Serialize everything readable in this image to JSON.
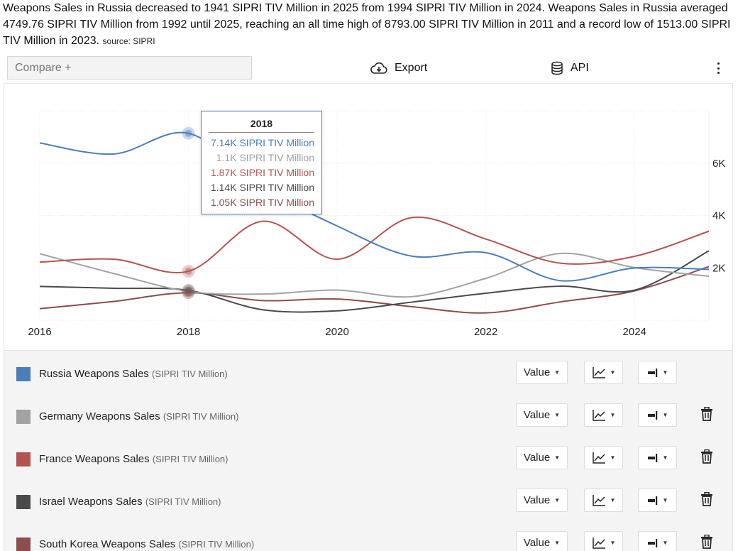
{
  "summary": {
    "text": "Weapons Sales in Russia decreased to 1941 SIPRI TIV Million in 2025 from 1994 SIPRI TIV Million in 2024. Weapons Sales in Russia averaged 4749.76 SIPRI TIV Million from 1992 until 2025, reaching an all time high of 8793.00 SIPRI TIV Million in 2011 and a record low of 1513.00 SIPRI TIV Million in 2023.",
    "source": "source: SIPRI"
  },
  "toolbar": {
    "compare_label": "Compare +",
    "export_label": "Export",
    "api_label": "API",
    "export_icon": "cloud-download-icon",
    "api_icon": "database-icon",
    "menu_icon": "kebab-menu-icon"
  },
  "chart_data": {
    "type": "line",
    "x_range": [
      2016,
      2025
    ],
    "y_range": [
      0,
      8000
    ],
    "x_ticks": [
      "2016",
      "2018",
      "2020",
      "2022",
      "2024"
    ],
    "y_ticks": [
      {
        "value": 2000,
        "label": "2K"
      },
      {
        "value": 4000,
        "label": "4K"
      },
      {
        "value": 6000,
        "label": "6K"
      }
    ],
    "grid": true,
    "y_axis_side": "right",
    "series": [
      {
        "key": "russia",
        "color": "#4a7ebb",
        "x": [
          2016,
          2017,
          2018,
          2019,
          2020,
          2021,
          2022,
          2023,
          2024,
          2025
        ],
        "values": [
          6770,
          6350,
          7140,
          5080,
          3600,
          2450,
          2580,
          1513,
          1994,
          1941
        ]
      },
      {
        "key": "germany",
        "color": "#a2a2a2",
        "x": [
          2016,
          2017,
          2018,
          2019,
          2020,
          2021,
          2022,
          2023,
          2024,
          2025
        ],
        "values": [
          2540,
          1780,
          1100,
          1000,
          1150,
          900,
          1600,
          2550,
          2010,
          1680
        ]
      },
      {
        "key": "france",
        "color": "#b35450",
        "x": [
          2016,
          2017,
          2018,
          2019,
          2020,
          2021,
          2022,
          2023,
          2024,
          2025
        ],
        "values": [
          2220,
          2330,
          1870,
          3780,
          2330,
          3920,
          3100,
          2180,
          2440,
          3400
        ]
      },
      {
        "key": "israel",
        "color": "#4a4a4a",
        "x": [
          2016,
          2017,
          2018,
          2019,
          2020,
          2021,
          2022,
          2023,
          2024,
          2025
        ],
        "values": [
          1290,
          1220,
          1140,
          400,
          360,
          690,
          1030,
          1300,
          1150,
          2650
        ]
      },
      {
        "key": "south_korea",
        "color": "#8b4d4d",
        "x": [
          2016,
          2017,
          2018,
          2019,
          2020,
          2021,
          2022,
          2023,
          2024,
          2025
        ],
        "values": [
          440,
          720,
          1050,
          750,
          810,
          520,
          280,
          700,
          1120,
          2050
        ]
      }
    ]
  },
  "tooltip": {
    "title": "2018",
    "rows": [
      {
        "text": "7.14K SIPRI TIV Million",
        "color": "#4a7ebb"
      },
      {
        "text": "1.1K SIPRI TIV Million",
        "color": "#a2a2a2"
      },
      {
        "text": "1.87K SIPRI TIV Million",
        "color": "#b35450"
      },
      {
        "text": "1.14K SIPRI TIV Million",
        "color": "#4a4a4a"
      },
      {
        "text": "1.05K SIPRI TIV Million",
        "color": "#8b4d4d"
      }
    ]
  },
  "legend": {
    "rows": [
      {
        "name": "Russia Weapons Sales",
        "unit": "(SIPRI TIV Million)",
        "color": "#4a7ebb",
        "value_label": "Value",
        "deletable": false
      },
      {
        "name": "Germany Weapons Sales",
        "unit": "(SIPRI TIV Million)",
        "color": "#a2a2a2",
        "value_label": "Value",
        "deletable": true
      },
      {
        "name": "France Weapons Sales",
        "unit": "(SIPRI TIV Million)",
        "color": "#b35450",
        "value_label": "Value",
        "deletable": true
      },
      {
        "name": "Israel Weapons Sales",
        "unit": "(SIPRI TIV Million)",
        "color": "#4a4a4a",
        "value_label": "Value",
        "deletable": true
      },
      {
        "name": "South Korea Weapons Sales",
        "unit": "(SIPRI TIV Million)",
        "color": "#8b4d4d",
        "value_label": "Value",
        "deletable": true
      }
    ],
    "icons": {
      "chart_type": "line-chart-icon",
      "axis": "axis-position-icon",
      "delete": "trash-icon"
    }
  }
}
